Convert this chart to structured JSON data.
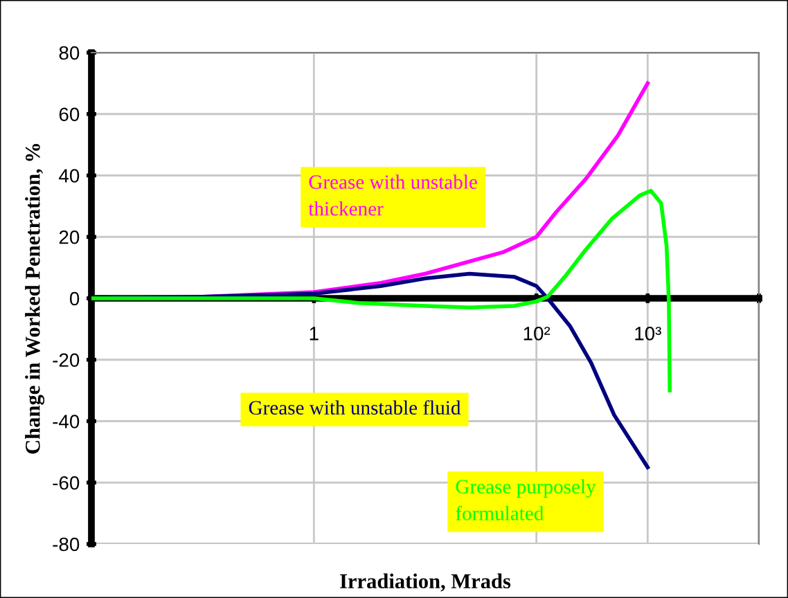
{
  "chart_data": {
    "type": "line",
    "xlabel": "Irradiation, Mrads",
    "ylabel": "Change in Worked Penetration, %",
    "log": "x",
    "xlim": [
      0.01,
      10000
    ],
    "ylim": [
      -80,
      80
    ],
    "xticks": [
      {
        "value": 0.01,
        "label": null
      },
      {
        "value": 1,
        "label": "1"
      },
      {
        "value": 100,
        "label": "10²"
      },
      {
        "value": 1000,
        "label": "10³"
      },
      {
        "value": 10000,
        "label": null
      }
    ],
    "yticks": [
      -80,
      -60,
      -40,
      -20,
      0,
      20,
      40,
      60,
      80
    ],
    "grid": true,
    "marker": "none",
    "line_style": "solid",
    "series": [
      {
        "color": "#ff00ff",
        "x": [
          0.01,
          0.1,
          1,
          4,
          10,
          50,
          100,
          150,
          280,
          540,
          1000
        ],
        "values": [
          0,
          0.5,
          2,
          5,
          8,
          15,
          20,
          28,
          39,
          53,
          70
        ]
      },
      {
        "color": "#000080",
        "x": [
          0.01,
          0.1,
          1,
          4,
          10,
          25,
          63,
          100,
          126,
          200,
          310,
          500,
          1000
        ],
        "values": [
          0,
          0.5,
          1.5,
          4,
          6.5,
          8,
          7,
          4,
          0,
          -9,
          -21,
          -38,
          -55
        ]
      },
      {
        "color": "#00ff00",
        "x": [
          0.01,
          0.1,
          1,
          2.5,
          10,
          25,
          63,
          100,
          126,
          180,
          280,
          480,
          850,
          1070,
          1320,
          1480,
          1550,
          1580
        ],
        "values": [
          0,
          0,
          0,
          -1.5,
          -2.5,
          -3,
          -2.5,
          -1,
          0.5,
          7,
          16,
          26,
          33.5,
          35,
          31,
          17,
          -1,
          -30
        ]
      }
    ],
    "annotations": [
      "Grease with unstable thickener",
      "Grease with unstable fluid",
      "Grease purposely formulated"
    ]
  }
}
